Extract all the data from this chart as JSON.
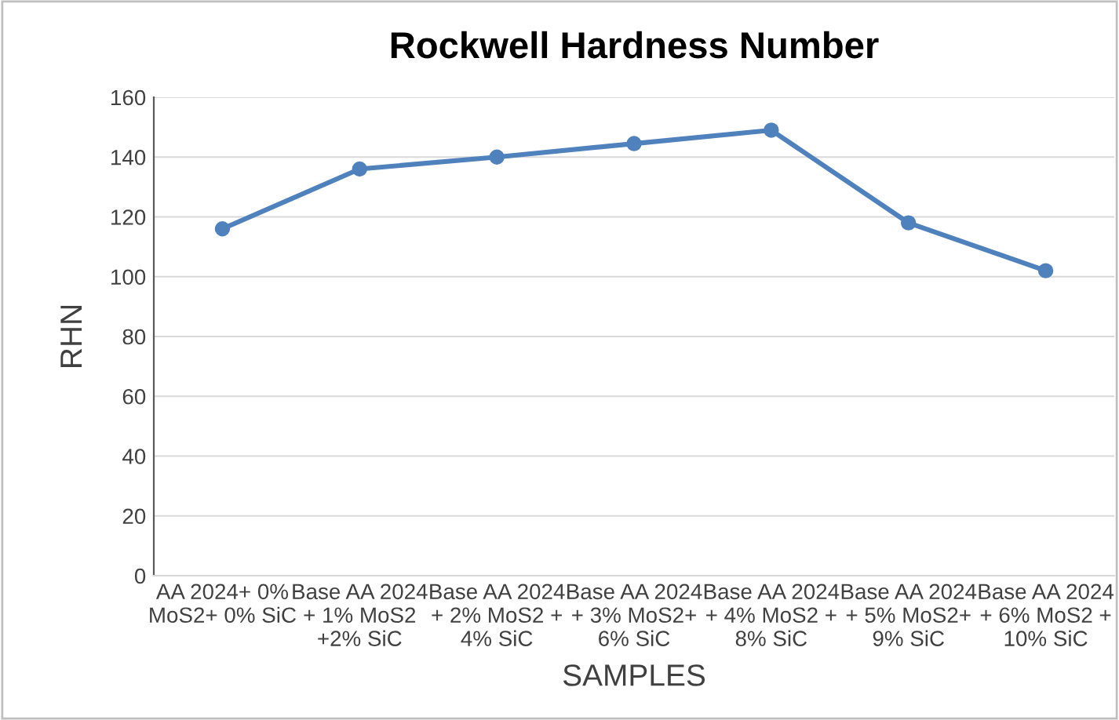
{
  "chart_data": {
    "type": "line",
    "title": "Rockwell Hardness Number",
    "xlabel": "SAMPLES",
    "ylabel": "RHN",
    "categories": [
      "AA 2024+ 0%\nMoS2+ 0% SiC",
      "Base AA 2024\n+ 1% MoS2\n+2% SiC",
      "Base AA 2024\n+ 2% MoS2 +\n4% SiC",
      "Base AA 2024\n+ 3% MoS2+\n6% SiC",
      "Base AA 2024\n+ 4% MoS2 +\n8% SiC",
      "Base AA 2024\n+ 5% MoS2+\n9% SiC",
      "Base AA 2024\n+ 6% MoS2 +\n10% SiC"
    ],
    "values": [
      116,
      136,
      140,
      144.5,
      149,
      118,
      102
    ],
    "color": "#4f81bd",
    "ylim": [
      0,
      160
    ],
    "yticks": [
      0,
      20,
      40,
      60,
      80,
      100,
      120,
      140,
      160
    ],
    "grid": "y",
    "marker": "circle",
    "line_style": "solid"
  }
}
